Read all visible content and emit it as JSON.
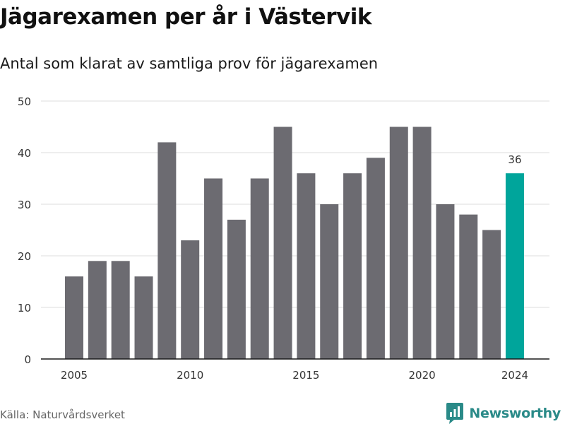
{
  "header": {
    "title": "Jägarexamen per år i Västervik",
    "subtitle": "Antal som klarat av samtliga prov för jägarexamen"
  },
  "footer": {
    "source": "Källa: Naturvårdsverket",
    "brand": "Newsworthy",
    "brand_icon": "bar-chart-speech-bubble-icon"
  },
  "colors": {
    "bar": "#6c6b71",
    "highlight": "#00a59b",
    "grid": "#dddddd",
    "axis": "#1a1a1a",
    "text": "#333333",
    "brand": "#2a8a88"
  },
  "chart_data": {
    "type": "bar",
    "x": [
      2005,
      2006,
      2007,
      2008,
      2009,
      2010,
      2011,
      2012,
      2013,
      2014,
      2015,
      2016,
      2017,
      2018,
      2019,
      2020,
      2021,
      2022,
      2023,
      2024
    ],
    "values": [
      16,
      19,
      19,
      16,
      42,
      23,
      35,
      27,
      35,
      45,
      36,
      30,
      36,
      39,
      45,
      45,
      30,
      28,
      25,
      36
    ],
    "x_ticks": [
      "2005",
      "2010",
      "2015",
      "2020",
      "2024"
    ],
    "y_ticks": [
      0,
      10,
      20,
      30,
      40,
      50
    ],
    "ylim": [
      0,
      50
    ],
    "highlight_index": 19,
    "data_labels": [
      {
        "index": 19,
        "text": "36"
      }
    ],
    "grid": true,
    "legend": false
  }
}
